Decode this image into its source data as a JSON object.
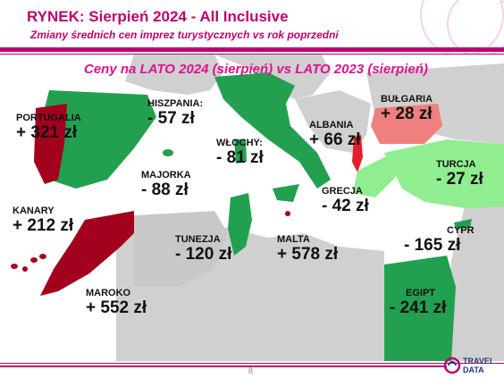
{
  "header": {
    "title": "RYNEK: Sierpień 2024 - All Inclusive",
    "subtitle": "Zmiany średnich cen imprez turystycznych vs rok poprzedni"
  },
  "map": {
    "title": "Ceny na LATO 2024 (sierpień) vs  LATO 2023 (sierpień)",
    "colors": {
      "positive_high": "#a3001e",
      "positive_low": "#f08080",
      "negative_high": "#22a050",
      "negative_low": "#90ee90",
      "sea": "#ffffff",
      "land": "#d0d0d0"
    },
    "countries": [
      {
        "name": "PORTUGALIA",
        "value": "+ 321 zł"
      },
      {
        "name": "HISZPANIA:",
        "value": "- 57 zł"
      },
      {
        "name": "MAJORKA",
        "value": "- 88 zł"
      },
      {
        "name": "KANARY",
        "value": "+ 212 zł"
      },
      {
        "name": "MAROKO",
        "value": "+ 552 zł"
      },
      {
        "name": "WŁOCHY:",
        "value": "- 81 zł"
      },
      {
        "name": "TUNEZJA",
        "value": "- 120 zł"
      },
      {
        "name": "MALTA",
        "value": "+ 578 zł"
      },
      {
        "name": "ALBANIA",
        "value": "+ 66 zł"
      },
      {
        "name": "GRECJA",
        "value": "- 42 zł"
      },
      {
        "name": "BUŁGARIA",
        "value": "+ 28 zł"
      },
      {
        "name": "TURCJA",
        "value": "- 27 zł"
      },
      {
        "name": "CYPR",
        "value": "- 165 zł"
      },
      {
        "name": "EGIPT",
        "value": "- 241 zł"
      }
    ]
  },
  "footer": {
    "page_number": "8",
    "logo_line1": "TRAVEL",
    "logo_line2": "DATA"
  }
}
